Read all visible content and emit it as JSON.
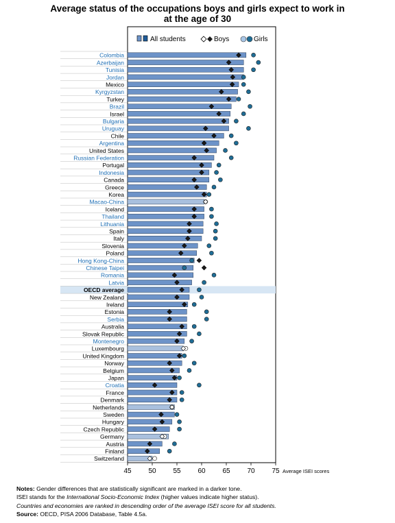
{
  "title_line1": "Average status of the occupations boys and girls expect to work in",
  "title_line2": "at the age of 30",
  "legend": {
    "all_students": "All students",
    "boys": "Boys",
    "girls": "Girls"
  },
  "colors": {
    "bar": "#6d93c8",
    "bar_dark": "#1f5c99",
    "boys": "#1a1a1a",
    "girls": "#1f6d96",
    "link_text": "#1f6fb5",
    "oecd_band": "#d7e6f4"
  },
  "chart_data": {
    "type": "bar",
    "orientation": "horizontal",
    "xlabel": "Average ISEI scores",
    "xlim": [
      45,
      75
    ],
    "xticks": [
      45,
      50,
      55,
      60,
      65,
      70,
      75
    ],
    "grid": false,
    "legend_position": "top",
    "categories": [
      "Colombia",
      "Azerbaijan",
      "Tunisia",
      "Jordan",
      "Mexico",
      "Kyrgyzstan",
      "Turkey",
      "Brazil",
      "Israel",
      "Bulgaria",
      "Uruguay",
      "Chile",
      "Argentina",
      "United States",
      "Russian Federation",
      "Portugal",
      "Indonesia",
      "Canada",
      "Greece",
      "Korea",
      "Macao-China",
      "Iceland",
      "Thailand",
      "Lithuania",
      "Spain",
      "Italy",
      "Slovenia",
      "Poland",
      "Hong Kong-China",
      "Chinese Taipei",
      "Romania",
      "Latvia",
      "OECD average",
      "New Zealand",
      "Ireland",
      "Estonia",
      "Serbia",
      "Australia",
      "Slovak Republic",
      "Montenegro",
      "Luxembourg",
      "United Kingdom",
      "Norway",
      "Belgium",
      "Japan",
      "Croatia",
      "France",
      "Denmark",
      "Netherlands",
      "Sweden",
      "Hungary",
      "Czech Republic",
      "Germany",
      "Austria",
      "Finland",
      "Switzerland"
    ],
    "partner_economies": [
      "Colombia",
      "Azerbaijan",
      "Tunisia",
      "Jordan",
      "Kyrgyzstan",
      "Brazil",
      "Bulgaria",
      "Uruguay",
      "Argentina",
      "Russian Federation",
      "Indonesia",
      "Macao-China",
      "Thailand",
      "Lithuania",
      "Hong Kong-China",
      "Chinese Taipei",
      "Romania",
      "Latvia",
      "Serbia",
      "Montenegro",
      "Croatia"
    ],
    "non_significant_gender_difference": [
      "Macao-China",
      "Luxembourg",
      "Netherlands",
      "Germany",
      "Switzerland"
    ],
    "series": [
      {
        "name": "All students",
        "values": [
          69.0,
          68.5,
          68.5,
          68.5,
          67.5,
          67.3,
          67.0,
          66.0,
          65.8,
          65.5,
          65.5,
          64.5,
          63.5,
          63.0,
          62.5,
          62.0,
          61.5,
          61.5,
          61.0,
          61.0,
          60.5,
          60.5,
          60.5,
          60.3,
          60.3,
          60.0,
          59.2,
          59.0,
          58.5,
          58.3,
          58.3,
          58.0,
          57.5,
          57.5,
          57.2,
          57.0,
          57.0,
          57.0,
          57.0,
          56.5,
          56.3,
          56.0,
          56.0,
          55.5,
          55.0,
          55.0,
          55.0,
          55.0,
          54.5,
          54.5,
          54.0,
          53.5,
          53.3,
          52.0,
          51.5,
          50.0
        ]
      },
      {
        "name": "Boys",
        "values": [
          67.5,
          65.5,
          66.0,
          66.3,
          66.2,
          64.0,
          65.5,
          62.0,
          63.5,
          64.5,
          60.8,
          62.5,
          60.5,
          61.0,
          58.5,
          60.0,
          60.0,
          58.5,
          59.0,
          60.5,
          60.8,
          58.5,
          58.5,
          57.5,
          57.5,
          57.2,
          56.5,
          55.8,
          59.5,
          60.5,
          54.5,
          55.0,
          56.0,
          55.0,
          56.5,
          53.5,
          53.5,
          56.0,
          55.5,
          55.0,
          56.3,
          55.5,
          53.5,
          54.0,
          54.5,
          50.5,
          54.0,
          53.5,
          54.0,
          51.8,
          52.0,
          50.5,
          52.0,
          49.5,
          49.0,
          49.5
        ]
      },
      {
        "name": "Girls",
        "values": [
          70.5,
          71.5,
          70.5,
          68.5,
          68.5,
          69.5,
          67.5,
          69.8,
          68.5,
          67.0,
          69.5,
          66.0,
          67.0,
          64.8,
          66.0,
          63.5,
          63.0,
          63.8,
          62.5,
          61.5,
          60.8,
          62.0,
          62.0,
          63.0,
          62.8,
          62.8,
          61.5,
          62.0,
          58.0,
          56.5,
          62.5,
          60.5,
          59.5,
          60.0,
          58.5,
          61.0,
          61.0,
          58.5,
          59.5,
          58.0,
          56.8,
          56.5,
          58.5,
          57.5,
          55.5,
          59.5,
          56.0,
          56.0,
          54.0,
          55.0,
          55.5,
          55.5,
          52.5,
          54.5,
          53.5,
          50.5
        ]
      }
    ]
  },
  "notes": {
    "line1_label": "Notes:",
    "line1_text": " Gender differences that are statistically significant are marked in a darker tone.",
    "line2_a": "ISEI stands for the ",
    "line2_italic": "International Socio-Economic Index",
    "line2_b": " (higher values indicate higher status).",
    "line3": "Countries and economies are ranked in descending order of the average ISEI score for all students.",
    "line4_label": "Source:",
    "line4_text": " OECD, PISA 2006 Database, Table 4.5a."
  }
}
